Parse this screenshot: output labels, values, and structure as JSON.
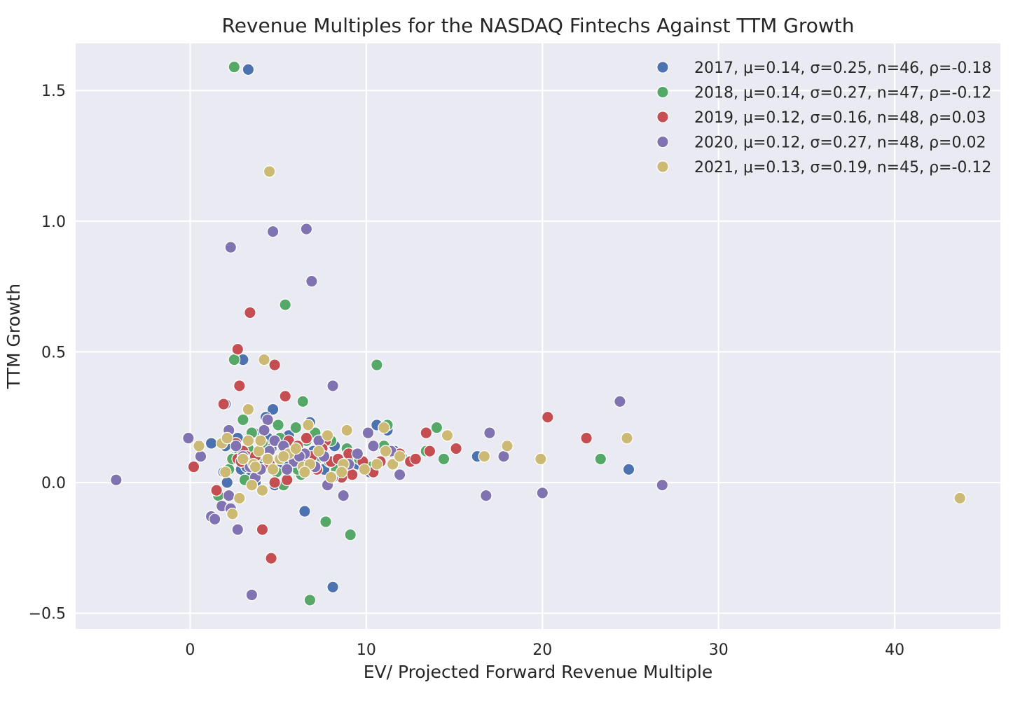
{
  "chart_data": {
    "type": "scatter",
    "title": "Revenue Multiples for the NASDAQ Fintechs Against TTM Growth",
    "xlabel": "EV/ Projected Forward Revenue Multiple",
    "ylabel": "TTM Growth",
    "xlim": [
      -6.5,
      46
    ],
    "ylim": [
      -0.56,
      1.68
    ],
    "xticks": [
      0,
      10,
      20,
      30,
      40
    ],
    "yticks": [
      -0.5,
      0.0,
      0.5,
      1.0,
      1.5
    ],
    "xtick_labels": [
      "0",
      "10",
      "20",
      "30",
      "40"
    ],
    "ytick_labels": [
      "−0.5",
      "0.0",
      "0.5",
      "1.0",
      "1.5"
    ],
    "grid": true,
    "legend_position": "top-right",
    "series": [
      {
        "name": "2017",
        "label": "2017, μ=0.14, σ=0.25, n=46, ρ=-0.18",
        "color": "#4C72B0",
        "points": [
          [
            3.3,
            1.58
          ],
          [
            3.0,
            0.47
          ],
          [
            2.0,
            0.3
          ],
          [
            4.7,
            0.28
          ],
          [
            4.3,
            0.25
          ],
          [
            2.3,
            0.18
          ],
          [
            1.2,
            0.15
          ],
          [
            2.7,
            0.17
          ],
          [
            2.0,
            0.14
          ],
          [
            3.6,
            0.19
          ],
          [
            4.4,
            0.17
          ],
          [
            5.2,
            0.15
          ],
          [
            5.6,
            0.18
          ],
          [
            6.1,
            0.14
          ],
          [
            6.8,
            0.23
          ],
          [
            7.0,
            0.12
          ],
          [
            7.6,
            0.05
          ],
          [
            8.2,
            0.14
          ],
          [
            8.8,
            0.07
          ],
          [
            9.2,
            0.1
          ],
          [
            10.6,
            0.22
          ],
          [
            11.2,
            0.2
          ],
          [
            11.6,
            0.12
          ],
          [
            16.3,
            0.1
          ],
          [
            24.9,
            0.05
          ],
          [
            2.1,
            0.0
          ],
          [
            2.9,
            0.05
          ],
          [
            3.4,
            0.02
          ],
          [
            4.8,
            -0.01
          ],
          [
            6.5,
            -0.11
          ],
          [
            8.1,
            -0.4
          ],
          [
            3.9,
            0.09
          ],
          [
            5.0,
            0.06
          ],
          [
            6.4,
            0.04
          ],
          [
            7.2,
            0.09
          ],
          [
            8.5,
            0.04
          ],
          [
            2.6,
            0.1
          ],
          [
            3.2,
            0.06
          ],
          [
            4.6,
            0.13
          ],
          [
            5.5,
            0.08
          ],
          [
            6.0,
            0.12
          ],
          [
            9.5,
            0.07
          ],
          [
            10.2,
            0.04
          ],
          [
            3.7,
            0.0
          ],
          [
            4.0,
            0.12
          ],
          [
            1.9,
            0.04
          ]
        ]
      },
      {
        "name": "2018",
        "label": "2018, μ=0.14, σ=0.27, n=47, ρ=-0.12",
        "color": "#55A868",
        "points": [
          [
            2.5,
            1.59
          ],
          [
            5.4,
            0.68
          ],
          [
            2.5,
            0.47
          ],
          [
            10.6,
            0.45
          ],
          [
            6.4,
            0.31
          ],
          [
            3.0,
            0.24
          ],
          [
            3.5,
            0.19
          ],
          [
            5.0,
            0.22
          ],
          [
            6.0,
            0.21
          ],
          [
            7.1,
            0.19
          ],
          [
            8.0,
            0.16
          ],
          [
            8.9,
            0.13
          ],
          [
            11.0,
            0.14
          ],
          [
            11.2,
            0.22
          ],
          [
            13.4,
            0.12
          ],
          [
            14.0,
            0.21
          ],
          [
            14.4,
            0.09
          ],
          [
            23.3,
            0.09
          ],
          [
            1.6,
            -0.05
          ],
          [
            3.1,
            0.01
          ],
          [
            5.3,
            -0.01
          ],
          [
            7.7,
            -0.15
          ],
          [
            9.1,
            -0.2
          ],
          [
            6.8,
            -0.45
          ],
          [
            2.2,
            0.05
          ],
          [
            2.8,
            0.12
          ],
          [
            3.6,
            0.08
          ],
          [
            4.2,
            0.1
          ],
          [
            4.6,
            0.06
          ],
          [
            5.7,
            0.1
          ],
          [
            6.3,
            0.03
          ],
          [
            6.9,
            0.07
          ],
          [
            7.4,
            0.1
          ],
          [
            8.3,
            0.05
          ],
          [
            9.6,
            0.09
          ],
          [
            10.3,
            0.06
          ],
          [
            4.1,
            0.15
          ],
          [
            5.9,
            0.14
          ],
          [
            6.6,
            0.16
          ],
          [
            7.9,
            0.08
          ],
          [
            2.4,
            0.09
          ],
          [
            3.3,
            0.13
          ],
          [
            4.9,
            0.04
          ],
          [
            8.6,
            0.02
          ],
          [
            12.0,
            0.1
          ],
          [
            5.1,
            0.17
          ],
          [
            6.1,
            0.05
          ]
        ]
      },
      {
        "name": "2019",
        "label": "2019, μ=0.12, σ=0.16, n=48, ρ=0.03",
        "color": "#C44E52",
        "points": [
          [
            3.4,
            0.65
          ],
          [
            2.7,
            0.51
          ],
          [
            4.8,
            0.45
          ],
          [
            2.8,
            0.37
          ],
          [
            5.4,
            0.33
          ],
          [
            1.9,
            0.3
          ],
          [
            0.2,
            0.06
          ],
          [
            1.5,
            -0.03
          ],
          [
            4.1,
            -0.18
          ],
          [
            4.6,
            -0.29
          ],
          [
            2.7,
            0.09
          ],
          [
            3.0,
            0.12
          ],
          [
            3.5,
            0.06
          ],
          [
            4.3,
            0.11
          ],
          [
            5.6,
            0.16
          ],
          [
            6.1,
            0.14
          ],
          [
            6.6,
            0.17
          ],
          [
            7.7,
            0.16
          ],
          [
            8.0,
            0.08
          ],
          [
            8.4,
            0.09
          ],
          [
            9.2,
            0.03
          ],
          [
            9.8,
            0.08
          ],
          [
            10.8,
            0.08
          ],
          [
            11.4,
            0.12
          ],
          [
            12.5,
            0.08
          ],
          [
            13.4,
            0.19
          ],
          [
            13.6,
            0.12
          ],
          [
            15.1,
            0.13
          ],
          [
            20.3,
            0.25
          ],
          [
            22.5,
            0.17
          ],
          [
            2.6,
            0.15
          ],
          [
            3.2,
            0.1
          ],
          [
            3.9,
            0.05
          ],
          [
            4.8,
            0.0
          ],
          [
            5.5,
            0.01
          ],
          [
            6.5,
            0.08
          ],
          [
            7.2,
            0.05
          ],
          [
            8.6,
            0.02
          ],
          [
            2.9,
            0.08
          ],
          [
            3.7,
            0.1
          ],
          [
            4.5,
            0.07
          ],
          [
            5.9,
            0.11
          ],
          [
            6.9,
            0.1
          ],
          [
            7.5,
            0.13
          ],
          [
            9.0,
            0.11
          ],
          [
            10.4,
            0.04
          ],
          [
            11.9,
            0.11
          ],
          [
            12.8,
            0.09
          ]
        ]
      },
      {
        "name": "2020",
        "label": "2020, μ=0.12, σ=0.27, n=48, ρ=0.02",
        "color": "#8172B2",
        "points": [
          [
            -4.2,
            0.01
          ],
          [
            -0.1,
            0.17
          ],
          [
            0.6,
            0.1
          ],
          [
            2.3,
            0.9
          ],
          [
            4.7,
            0.96
          ],
          [
            6.6,
            0.97
          ],
          [
            6.9,
            0.77
          ],
          [
            8.1,
            0.37
          ],
          [
            24.4,
            0.31
          ],
          [
            1.2,
            -0.13
          ],
          [
            1.4,
            -0.14
          ],
          [
            1.8,
            -0.09
          ],
          [
            2.2,
            -0.05
          ],
          [
            2.3,
            -0.1
          ],
          [
            2.7,
            -0.18
          ],
          [
            3.5,
            -0.43
          ],
          [
            4.4,
            0.24
          ],
          [
            4.2,
            0.2
          ],
          [
            2.2,
            0.2
          ],
          [
            3.7,
            0.02
          ],
          [
            4.0,
            0.05
          ],
          [
            4.8,
            0.16
          ],
          [
            5.3,
            0.14
          ],
          [
            5.9,
            0.08
          ],
          [
            6.5,
            0.11
          ],
          [
            7.1,
            0.06
          ],
          [
            7.6,
            0.1
          ],
          [
            7.8,
            -0.01
          ],
          [
            8.1,
            0.02
          ],
          [
            8.7,
            -0.05
          ],
          [
            9.5,
            0.11
          ],
          [
            10.1,
            0.19
          ],
          [
            10.4,
            0.14
          ],
          [
            11.4,
            0.12
          ],
          [
            11.9,
            0.03
          ],
          [
            16.8,
            -0.05
          ],
          [
            17.0,
            0.19
          ],
          [
            17.8,
            0.1
          ],
          [
            20.0,
            -0.04
          ],
          [
            26.8,
            -0.01
          ],
          [
            3.0,
            0.1
          ],
          [
            3.4,
            0.06
          ],
          [
            4.5,
            0.12
          ],
          [
            5.5,
            0.05
          ],
          [
            6.2,
            0.1
          ],
          [
            7.3,
            0.16
          ],
          [
            9.0,
            0.07
          ],
          [
            2.6,
            0.14
          ]
        ]
      },
      {
        "name": "2021",
        "label": "2021, μ=0.13, σ=0.19, n=45, ρ=-0.12",
        "color": "#CCB974",
        "points": [
          [
            4.5,
            1.19
          ],
          [
            4.2,
            0.47
          ],
          [
            3.3,
            0.28
          ],
          [
            6.7,
            0.22
          ],
          [
            7.8,
            0.18
          ],
          [
            8.9,
            0.2
          ],
          [
            11.0,
            0.21
          ],
          [
            14.6,
            0.18
          ],
          [
            18.0,
            0.14
          ],
          [
            19.9,
            0.09
          ],
          [
            24.8,
            0.17
          ],
          [
            43.7,
            -0.06
          ],
          [
            0.5,
            0.14
          ],
          [
            1.8,
            0.15
          ],
          [
            2.1,
            0.17
          ],
          [
            2.0,
            0.04
          ],
          [
            2.4,
            -0.12
          ],
          [
            2.8,
            -0.06
          ],
          [
            3.0,
            0.09
          ],
          [
            3.3,
            0.16
          ],
          [
            3.6,
            0.07
          ],
          [
            3.9,
            0.12
          ],
          [
            4.1,
            -0.03
          ],
          [
            3.5,
            -0.01
          ],
          [
            4.0,
            0.16
          ],
          [
            4.7,
            0.05
          ],
          [
            5.1,
            0.09
          ],
          [
            5.6,
            0.11
          ],
          [
            6.0,
            0.13
          ],
          [
            6.4,
            0.06
          ],
          [
            6.8,
            0.07
          ],
          [
            7.3,
            0.12
          ],
          [
            8.0,
            0.02
          ],
          [
            8.7,
            0.07
          ],
          [
            9.9,
            0.05
          ],
          [
            10.6,
            0.07
          ],
          [
            11.1,
            0.12
          ],
          [
            11.5,
            0.07
          ],
          [
            11.9,
            0.1
          ],
          [
            16.7,
            0.1
          ],
          [
            3.7,
            0.06
          ],
          [
            4.4,
            0.09
          ],
          [
            5.3,
            0.1
          ],
          [
            6.5,
            0.04
          ],
          [
            8.6,
            0.04
          ]
        ]
      }
    ]
  }
}
